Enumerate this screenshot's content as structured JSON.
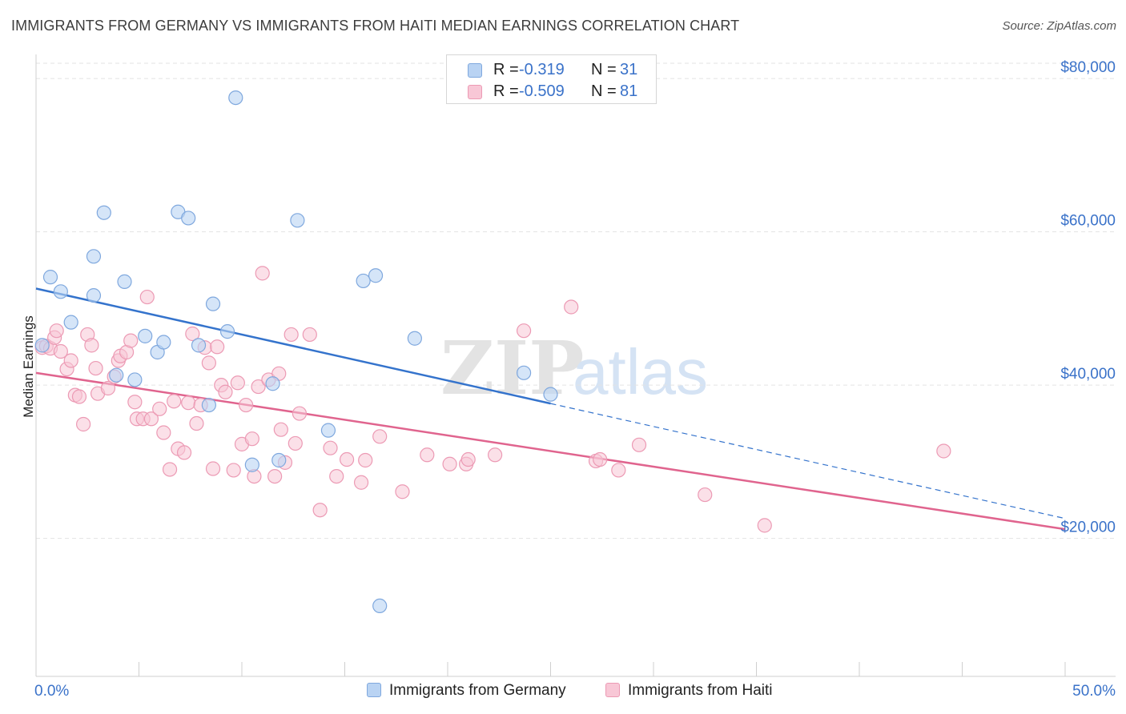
{
  "header": {
    "title": "IMMIGRANTS FROM GERMANY VS IMMIGRANTS FROM HAITI MEDIAN EARNINGS CORRELATION CHART",
    "source": "Source: ZipAtlas.com"
  },
  "legend": {
    "rows": [
      {
        "r_label": "R =",
        "r_value": "-0.319",
        "n_label": "N =",
        "n_value": "31"
      },
      {
        "r_label": "R =",
        "r_value": "-0.509",
        "n_label": "N =",
        "n_value": "81"
      }
    ],
    "items": [
      "Immigrants from Germany",
      "Immigrants from Haiti"
    ]
  },
  "watermark": {
    "zip": "ZIP",
    "atlas": "atlas"
  },
  "colors": {
    "germany_fill": "#b9d3f3",
    "germany_stroke": "#7fa8de",
    "germany_line": "#3473cc",
    "haiti_fill": "#f8c7d6",
    "haiti_stroke": "#ec9ab4",
    "haiti_line": "#e0648e",
    "tick_label": "#3a72c9"
  },
  "chart_data": {
    "type": "scatter",
    "title": "IMMIGRANTS FROM GERMANY VS IMMIGRANTS FROM HAITI MEDIAN EARNINGS CORRELATION CHART",
    "xlabel": "",
    "ylabel": "Median Earnings",
    "xlim": [
      0,
      50
    ],
    "ylim": [
      2000,
      82000
    ],
    "x_tick_labels": [
      "0.0%",
      "50.0%"
    ],
    "y_ticks": [
      20000,
      40000,
      60000,
      80000
    ],
    "y_tick_labels": [
      "$20,000",
      "$40,000",
      "$60,000",
      "$80,000"
    ],
    "grid": true,
    "legend_position": "top-center",
    "series": [
      {
        "name": "Immigrants from Germany",
        "r": -0.319,
        "n": 31,
        "trend": {
          "x0": 0,
          "y0": 52600,
          "x1": 25,
          "y1": 37600,
          "dashed_to_x": 50,
          "dashed_to_y": 22600
        },
        "points": [
          [
            0.3,
            45200
          ],
          [
            0.7,
            54100
          ],
          [
            1.2,
            52200
          ],
          [
            1.7,
            48200
          ],
          [
            2.8,
            56800
          ],
          [
            2.8,
            51700
          ],
          [
            3.3,
            62500
          ],
          [
            3.9,
            41300
          ],
          [
            4.3,
            53500
          ],
          [
            4.8,
            40700
          ],
          [
            5.3,
            46400
          ],
          [
            5.9,
            44300
          ],
          [
            6.2,
            45600
          ],
          [
            6.9,
            62600
          ],
          [
            7.4,
            61800
          ],
          [
            7.9,
            45200
          ],
          [
            8.4,
            37400
          ],
          [
            8.6,
            50600
          ],
          [
            9.3,
            47000
          ],
          [
            9.7,
            77500
          ],
          [
            10.5,
            29600
          ],
          [
            11.5,
            40200
          ],
          [
            11.8,
            30200
          ],
          [
            12.7,
            61500
          ],
          [
            14.2,
            34100
          ],
          [
            15.9,
            53600
          ],
          [
            16.5,
            54300
          ],
          [
            16.7,
            11200
          ],
          [
            18.4,
            46100
          ],
          [
            23.7,
            41600
          ],
          [
            25.0,
            38800
          ]
        ]
      },
      {
        "name": "Immigrants from Haiti",
        "r": -0.509,
        "n": 81,
        "trend": {
          "x0": 0,
          "y0": 41600,
          "x1": 50,
          "y1": 21200
        },
        "points": [
          [
            0.3,
            44900
          ],
          [
            0.5,
            45100
          ],
          [
            0.7,
            44800
          ],
          [
            0.9,
            46200
          ],
          [
            1.0,
            47100
          ],
          [
            1.2,
            44400
          ],
          [
            1.5,
            42100
          ],
          [
            1.7,
            43200
          ],
          [
            1.9,
            38700
          ],
          [
            2.1,
            38500
          ],
          [
            2.3,
            34900
          ],
          [
            2.5,
            46600
          ],
          [
            2.7,
            45200
          ],
          [
            2.9,
            42200
          ],
          [
            3.0,
            38900
          ],
          [
            3.5,
            39600
          ],
          [
            3.8,
            41100
          ],
          [
            4.0,
            43200
          ],
          [
            4.1,
            43800
          ],
          [
            4.4,
            44300
          ],
          [
            4.6,
            45800
          ],
          [
            4.8,
            37800
          ],
          [
            4.9,
            35600
          ],
          [
            5.2,
            35600
          ],
          [
            5.4,
            51500
          ],
          [
            5.6,
            35600
          ],
          [
            6.0,
            36900
          ],
          [
            6.2,
            33800
          ],
          [
            6.5,
            29000
          ],
          [
            6.7,
            37900
          ],
          [
            6.9,
            31700
          ],
          [
            7.2,
            31200
          ],
          [
            7.4,
            37700
          ],
          [
            7.6,
            46700
          ],
          [
            7.8,
            35000
          ],
          [
            8.0,
            37400
          ],
          [
            8.2,
            44900
          ],
          [
            8.4,
            42900
          ],
          [
            8.6,
            29100
          ],
          [
            8.8,
            45000
          ],
          [
            9.0,
            40000
          ],
          [
            9.2,
            39100
          ],
          [
            9.6,
            28900
          ],
          [
            9.8,
            40300
          ],
          [
            10.0,
            32300
          ],
          [
            10.2,
            37400
          ],
          [
            10.5,
            33000
          ],
          [
            10.6,
            28100
          ],
          [
            10.8,
            39800
          ],
          [
            11.0,
            54600
          ],
          [
            11.3,
            40700
          ],
          [
            11.6,
            28100
          ],
          [
            11.8,
            41500
          ],
          [
            11.9,
            34200
          ],
          [
            12.1,
            29900
          ],
          [
            12.4,
            46600
          ],
          [
            12.6,
            32400
          ],
          [
            12.8,
            36300
          ],
          [
            13.3,
            46600
          ],
          [
            13.8,
            23700
          ],
          [
            14.3,
            31800
          ],
          [
            14.6,
            28100
          ],
          [
            15.1,
            30300
          ],
          [
            15.8,
            27300
          ],
          [
            16.0,
            30200
          ],
          [
            16.7,
            33300
          ],
          [
            17.8,
            26100
          ],
          [
            19.0,
            30900
          ],
          [
            20.1,
            29700
          ],
          [
            20.9,
            29700
          ],
          [
            21.0,
            30300
          ],
          [
            22.3,
            30900
          ],
          [
            23.7,
            47100
          ],
          [
            26.0,
            50200
          ],
          [
            27.2,
            30100
          ],
          [
            27.4,
            30300
          ],
          [
            28.3,
            28900
          ],
          [
            29.3,
            32200
          ],
          [
            32.5,
            25700
          ],
          [
            35.4,
            21700
          ],
          [
            44.1,
            31400
          ]
        ]
      }
    ]
  }
}
